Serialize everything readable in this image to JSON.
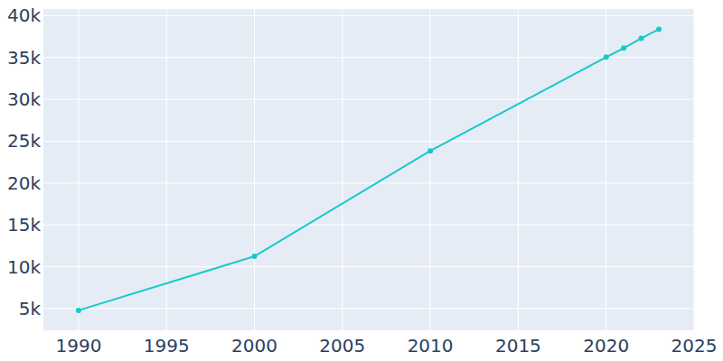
{
  "chart_data": {
    "type": "line",
    "x": [
      1990,
      2000,
      2010,
      2020,
      2021,
      2022,
      2023
    ],
    "values": [
      4785,
      11246,
      23846,
      35045,
      36122,
      37306,
      38383
    ],
    "color": "#17c9c9",
    "marker": "circle",
    "xlim": [
      1988,
      2025
    ],
    "xticks": [
      1990,
      1995,
      2000,
      2005,
      2010,
      2015,
      2020,
      2025
    ],
    "ylim": [
      2400,
      40800
    ],
    "yticks": [
      {
        "value": 5000,
        "label": "5k"
      },
      {
        "value": 10000,
        "label": "10k"
      },
      {
        "value": 15000,
        "label": "15k"
      },
      {
        "value": 20000,
        "label": "20k"
      },
      {
        "value": 25000,
        "label": "25k"
      },
      {
        "value": 30000,
        "label": "30k"
      },
      {
        "value": 35000,
        "label": "35k"
      },
      {
        "value": 40000,
        "label": "40k"
      }
    ],
    "grid": true
  }
}
